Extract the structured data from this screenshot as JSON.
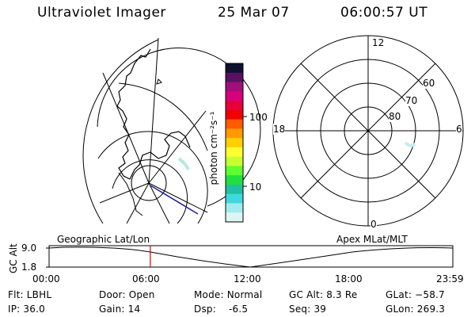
{
  "header": {
    "title": "Ultraviolet Imager",
    "date": "25 Mar 07",
    "time": "06:00:57 UT"
  },
  "colorbar": {
    "unit_label": "photon cm⁻²s⁻¹",
    "ticks": [
      "100",
      "10"
    ],
    "colors": [
      "#101030",
      "#5a1060",
      "#a0107a",
      "#d8007a",
      "#e8003c",
      "#f00000",
      "#ff5a00",
      "#ff9a00",
      "#ffd000",
      "#ffff30",
      "#c8ff30",
      "#60ff30",
      "#20e040",
      "#20c0a0",
      "#40d8e0",
      "#a0ecec",
      "#dcf4f4"
    ]
  },
  "polar_plot": {
    "mlt_labels": {
      "top": "12",
      "bottom": "0",
      "left": "18",
      "right": "6"
    },
    "lat_labels": [
      "60",
      "70",
      "80"
    ]
  },
  "timeline": {
    "left_label": "Geographic Lat/Lon",
    "right_label": "Apex MLat/MLT",
    "axis_label": "GC Alt",
    "y_ticks": [
      "9.0",
      "1.8"
    ],
    "x_ticks": [
      "00:00",
      "06:00",
      "12:00",
      "18:00",
      "23:59"
    ],
    "current_fraction_of_day": 0.2507
  },
  "status": {
    "filter": "Flt: LBHL",
    "ip": "IP: 36.0",
    "door": "Door: Open",
    "gain": "Gain: 14",
    "mode": "Mode: Normal",
    "dsp": "Dsp:    -6.5",
    "gc_alt": "GC Alt: 8.3 Re",
    "seq": "Seq: 39",
    "glat": "GLat: −58.7",
    "glon": "GLon: 269.3"
  }
}
